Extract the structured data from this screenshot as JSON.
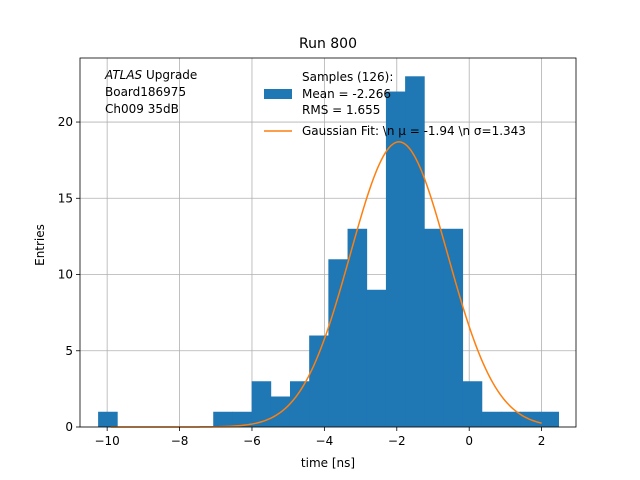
{
  "chart_data": {
    "type": "histogram",
    "title": "Run 800",
    "xlabel": "time [ns]",
    "ylabel": "Entries",
    "xlim": [
      -10.75,
      2.95
    ],
    "ylim": [
      0,
      24.2
    ],
    "xticks": [
      -10,
      -8,
      -6,
      -4,
      -2,
      0,
      2
    ],
    "xtick_labels": [
      "−10",
      "−8",
      "−6",
      "−4",
      "−2",
      "0",
      "2"
    ],
    "yticks": [
      0,
      5,
      10,
      15,
      20
    ],
    "ytick_labels": [
      "0",
      "5",
      "10",
      "15",
      "20"
    ],
    "grid": true,
    "colors": {
      "histogram": "#1f77b4",
      "fit": "#ff7f0e"
    },
    "annotation": {
      "italic": "ATLAS",
      "line1_rest": " Upgrade",
      "line2": " Board186975",
      "line3": " Ch009 35dB"
    },
    "legend": {
      "placement": "upper-center",
      "hist_lines": [
        "Samples (126):",
        " Mean = -2.266",
        " RMS = 1.655"
      ],
      "fit_label": "Gaussian Fit: \\n μ = -1.94 \\n σ=1.343"
    },
    "histogram": {
      "bin_edges": [
        -10.25,
        -9.72,
        -9.19,
        -8.66,
        -8.13,
        -7.6,
        -7.07,
        -6.54,
        -6.01,
        -5.48,
        -4.95,
        -4.42,
        -3.89,
        -3.36,
        -2.83,
        -2.3,
        -1.77,
        -1.24,
        -0.71,
        -0.18,
        0.35,
        0.88,
        1.41,
        1.94,
        2.47
      ],
      "counts": [
        1,
        0,
        0,
        0,
        0,
        0,
        1,
        1,
        3,
        2,
        3,
        6,
        11,
        13,
        9,
        22,
        23,
        13,
        13,
        3,
        1,
        1,
        1,
        1
      ]
    },
    "gaussian_fit": {
      "amplitude": 18.7,
      "mu": -1.94,
      "sigma": 1.343,
      "x_range": [
        -9.9,
        2.0
      ]
    }
  }
}
